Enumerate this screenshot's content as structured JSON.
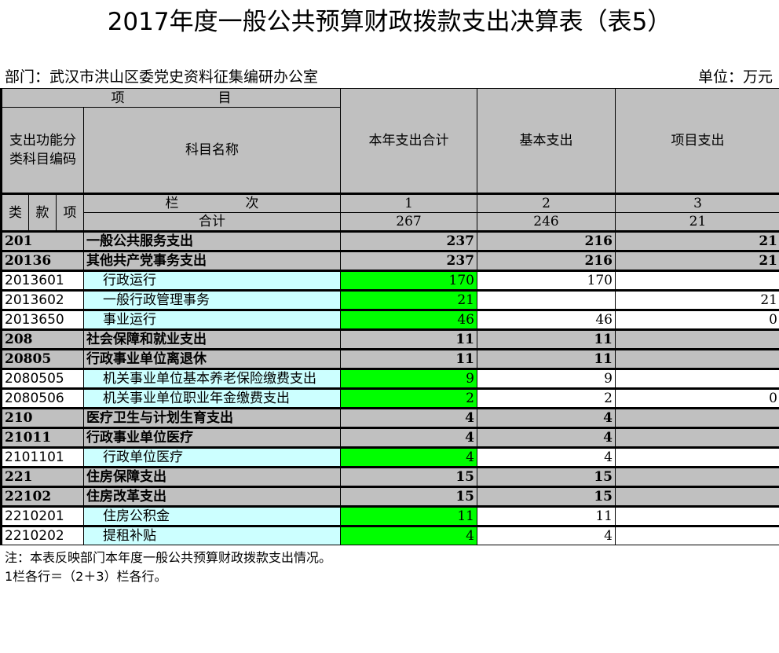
{
  "title": "2017年度一般公共预算财政拨款支出决算表（表5）",
  "department": "部门：武汉市洪山区委党史资料征集编研办公室",
  "unit": "单位：万元",
  "header": {
    "item": "项　　　　　　　目",
    "code_label": "支出功能分类科目编码",
    "name_label": "科目名称",
    "col1": "本年支出合计",
    "col2": "基本支出",
    "col3": "项目支出",
    "lei": "类",
    "kuan": "款",
    "xiang": "项",
    "lanci": "栏　　　　　次",
    "n1": "1",
    "n2": "2",
    "n3": "3"
  },
  "total": {
    "label": "合计",
    "v1": "267",
    "v2": "246",
    "v3": "21"
  },
  "rows": [
    {
      "code": "201",
      "name": "一般公共服务支出",
      "v1": "237",
      "v2": "216",
      "v3": "21",
      "level": "summary"
    },
    {
      "code": "20136",
      "name": "其他共产党事务支出",
      "v1": "237",
      "v2": "216",
      "v3": "21",
      "level": "summary"
    },
    {
      "code": "2013601",
      "name": "行政运行",
      "v1": "170",
      "v2": "170",
      "v3": "",
      "level": "detail"
    },
    {
      "code": "2013602",
      "name": "一般行政管理事务",
      "v1": "21",
      "v2": "",
      "v3": "21",
      "level": "detail"
    },
    {
      "code": "2013650",
      "name": "事业运行",
      "v1": "46",
      "v2": "46",
      "v3": "0",
      "level": "detail"
    },
    {
      "code": "208",
      "name": "社会保障和就业支出",
      "v1": "11",
      "v2": "11",
      "v3": "",
      "level": "summary"
    },
    {
      "code": "20805",
      "name": "行政事业单位离退休",
      "v1": "11",
      "v2": "11",
      "v3": "",
      "level": "summary"
    },
    {
      "code": "2080505",
      "name": "机关事业单位基本养老保险缴费支出",
      "v1": "9",
      "v2": "9",
      "v3": "",
      "level": "detail"
    },
    {
      "code": "2080506",
      "name": "机关事业单位职业年金缴费支出",
      "v1": "2",
      "v2": "2",
      "v3": "0",
      "level": "detail"
    },
    {
      "code": "210",
      "name": "医疗卫生与计划生育支出",
      "v1": "4",
      "v2": "4",
      "v3": "",
      "level": "summary"
    },
    {
      "code": "21011",
      "name": "行政事业单位医疗",
      "v1": "4",
      "v2": "4",
      "v3": "",
      "level": "summary"
    },
    {
      "code": "2101101",
      "name": "行政单位医疗",
      "v1": "4",
      "v2": "4",
      "v3": "",
      "level": "detail"
    },
    {
      "code": "221",
      "name": "住房保障支出",
      "v1": "15",
      "v2": "15",
      "v3": "",
      "level": "summary"
    },
    {
      "code": "22102",
      "name": "住房改革支出",
      "v1": "15",
      "v2": "15",
      "v3": "",
      "level": "summary"
    },
    {
      "code": "2210201",
      "name": "住房公积金",
      "v1": "11",
      "v2": "11",
      "v3": "",
      "level": "detail"
    },
    {
      "code": "2210202",
      "name": "提租补贴",
      "v1": "4",
      "v2": "4",
      "v3": "",
      "level": "detail"
    }
  ],
  "notes": [
    "注：本表反映部门本年度一般公共预算财政拨款支出情况。",
    "1栏各行＝（2＋3）栏各行。"
  ],
  "colors": {
    "header_gray": "#c0c0c0",
    "green": "#00ff00",
    "cyan": "#ccffff"
  }
}
